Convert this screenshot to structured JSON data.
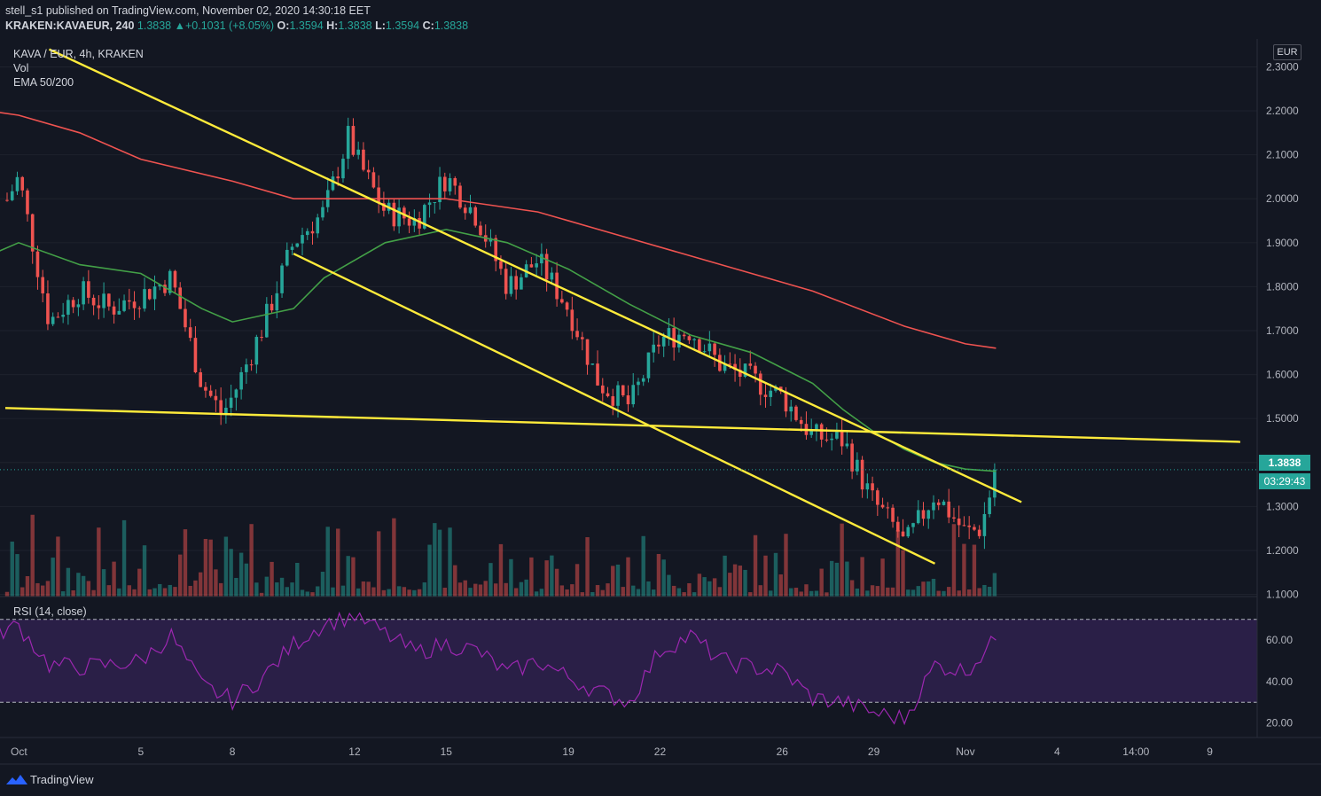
{
  "header": {
    "line1": "stell_s1 published on TradingView.com, November 02, 2020 14:30:18 EET",
    "symbol": "KRAKEN:KAVAEUR, 240",
    "last_price": "1.3838",
    "change_arrow": "▲",
    "change": "+0.1031 (+8.05%)",
    "o_label": "O:",
    "o_value": "1.3594",
    "h_label": "H:",
    "h_value": "1.3838",
    "l_label": "L:",
    "l_value": "1.3594",
    "c_label": "C:",
    "c_value": "1.3838"
  },
  "legend": {
    "title": "KAVA / EUR, 4h, KRAKEN",
    "vol": "Vol",
    "ema": "EMA 50/200"
  },
  "rsi_label": "RSI (14, close)",
  "currency_button": "EUR",
  "current_price_label": "1.3838",
  "countdown_label": "03:29:43",
  "footer": {
    "brand": "TradingView"
  },
  "colors": {
    "background": "#131722",
    "up": "#26a69a",
    "down": "#ef5350",
    "ema50": "#43a047",
    "ema200": "#ef5350",
    "trendline": "#ffeb3b",
    "rsi_line": "#9c27b0",
    "rsi_band": "#2a1f47"
  },
  "chart_data": [
    {
      "type": "candlestick",
      "title": "KAVA / EUR, 4h, KRAKEN",
      "y_axis": {
        "ticks": [
          "2.3000",
          "2.2000",
          "2.1000",
          "2.0000",
          "1.9000",
          "1.8000",
          "1.7000",
          "1.6000",
          "1.5000",
          "1.4000",
          "1.3000",
          "1.2000",
          "1.1000"
        ],
        "range": [
          1.085,
          2.315
        ]
      },
      "x_axis": {
        "ticks": [
          "Oct",
          "5",
          "8",
          "12",
          "15",
          "19",
          "22",
          "26",
          "29",
          "Nov",
          "4",
          "14:00",
          "9"
        ]
      },
      "close_path": [
        [
          "2020-09-30",
          1.91
        ],
        [
          "2020-10-01",
          2.05
        ],
        [
          "2020-10-02",
          1.72
        ],
        [
          "2020-10-03",
          1.79
        ],
        [
          "2020-10-04",
          1.75
        ],
        [
          "2020-10-05",
          1.78
        ],
        [
          "2020-10-06",
          1.82
        ],
        [
          "2020-10-07",
          1.58
        ],
        [
          "2020-10-07 16:00",
          1.51
        ],
        [
          "2020-10-08",
          1.55
        ],
        [
          "2020-10-09",
          1.71
        ],
        [
          "2020-10-10",
          1.9
        ],
        [
          "2020-10-11",
          1.97
        ],
        [
          "2020-10-11 20:00",
          2.15
        ],
        [
          "2020-10-12",
          2.1
        ],
        [
          "2020-10-13",
          1.97
        ],
        [
          "2020-10-14",
          1.95
        ],
        [
          "2020-10-15",
          2.05
        ],
        [
          "2020-10-16",
          1.96
        ],
        [
          "2020-10-17",
          1.8
        ],
        [
          "2020-10-18",
          1.86
        ],
        [
          "2020-10-19",
          1.75
        ],
        [
          "2020-10-20",
          1.58
        ],
        [
          "2020-10-21",
          1.53
        ],
        [
          "2020-10-22",
          1.68
        ],
        [
          "2020-10-23",
          1.7
        ],
        [
          "2020-10-24",
          1.62
        ],
        [
          "2020-10-25",
          1.59
        ],
        [
          "2020-10-26",
          1.55
        ],
        [
          "2020-10-27",
          1.46
        ],
        [
          "2020-10-28",
          1.45
        ],
        [
          "2020-10-28 20:00",
          1.33
        ],
        [
          "2020-10-29",
          1.31
        ],
        [
          "2020-10-29 20:00",
          1.24
        ],
        [
          "2020-10-30",
          1.21
        ],
        [
          "2020-10-31",
          1.33
        ],
        [
          "2020-11-01",
          1.24
        ],
        [
          "2020-11-01 12:00",
          1.25
        ],
        [
          "2020-11-02",
          1.38
        ]
      ],
      "ema50": [
        [
          "2020-09-30",
          1.87
        ],
        [
          "2020-10-01",
          1.9
        ],
        [
          "2020-10-03",
          1.85
        ],
        [
          "2020-10-05",
          1.83
        ],
        [
          "2020-10-07",
          1.75
        ],
        [
          "2020-10-08",
          1.72
        ],
        [
          "2020-10-10",
          1.75
        ],
        [
          "2020-10-11",
          1.82
        ],
        [
          "2020-10-13",
          1.9
        ],
        [
          "2020-10-15",
          1.93
        ],
        [
          "2020-10-17",
          1.9
        ],
        [
          "2020-10-19",
          1.84
        ],
        [
          "2020-10-21",
          1.76
        ],
        [
          "2020-10-23",
          1.69
        ],
        [
          "2020-10-25",
          1.65
        ],
        [
          "2020-10-27",
          1.58
        ],
        [
          "2020-10-28",
          1.52
        ],
        [
          "2020-10-29",
          1.47
        ],
        [
          "2020-10-30",
          1.43
        ],
        [
          "2020-10-31",
          1.4
        ],
        [
          "2020-11-01",
          1.385
        ],
        [
          "2020-11-02",
          1.38
        ]
      ],
      "ema200": [
        [
          "2020-09-30",
          2.2
        ],
        [
          "2020-10-01",
          2.19
        ],
        [
          "2020-10-03",
          2.15
        ],
        [
          "2020-10-05",
          2.09
        ],
        [
          "2020-10-08",
          2.04
        ],
        [
          "2020-10-10",
          2.0
        ],
        [
          "2020-10-12",
          2.0
        ],
        [
          "2020-10-15",
          2.0
        ],
        [
          "2020-10-18",
          1.97
        ],
        [
          "2020-10-21",
          1.91
        ],
        [
          "2020-10-24",
          1.85
        ],
        [
          "2020-10-27",
          1.79
        ],
        [
          "2020-10-30",
          1.71
        ],
        [
          "2020-11-01",
          1.67
        ],
        [
          "2020-11-02",
          1.66
        ]
      ],
      "trendlines": [
        [
          [
            "2020-10-02",
            2.34
          ],
          [
            "2020-11-02 20:00",
            1.31
          ]
        ],
        [
          [
            "2020-10-10",
            1.875
          ],
          [
            "2020-10-31",
            1.17
          ]
        ],
        [
          [
            "2020-09-30",
            1.525
          ],
          [
            "2020-11-10",
            1.447
          ]
        ]
      ],
      "current_price": 1.3838
    },
    {
      "type": "area",
      "title": "Vol",
      "note": "volume histogram, values unlabeled"
    },
    {
      "type": "line",
      "title": "RSI (14, close)",
      "y_axis": {
        "ticks": [
          "60.00",
          "40.00",
          "20.00"
        ],
        "range": [
          13,
          78
        ]
      },
      "bands": [
        30,
        70
      ],
      "x": [
        "2020-09-30",
        "2020-10-01",
        "2020-10-02",
        "2020-10-03",
        "2020-10-04",
        "2020-10-05",
        "2020-10-06",
        "2020-10-07",
        "2020-10-08",
        "2020-10-09",
        "2020-10-10",
        "2020-10-11",
        "2020-10-12",
        "2020-10-13",
        "2020-10-14",
        "2020-10-15",
        "2020-10-16",
        "2020-10-17",
        "2020-10-18",
        "2020-10-19",
        "2020-10-20",
        "2020-10-21",
        "2020-10-22",
        "2020-10-23",
        "2020-10-24",
        "2020-10-25",
        "2020-10-26",
        "2020-10-27",
        "2020-10-28",
        "2020-10-29",
        "2020-10-30",
        "2020-10-31",
        "2020-11-01",
        "2020-11-02"
      ],
      "values": [
        62,
        67,
        48,
        47,
        48,
        50,
        62,
        38,
        31,
        42,
        58,
        68,
        72,
        63,
        54,
        58,
        55,
        44,
        50,
        42,
        35,
        30,
        55,
        62,
        50,
        47,
        45,
        32,
        30,
        25,
        22,
        48,
        45,
        60
      ]
    }
  ]
}
